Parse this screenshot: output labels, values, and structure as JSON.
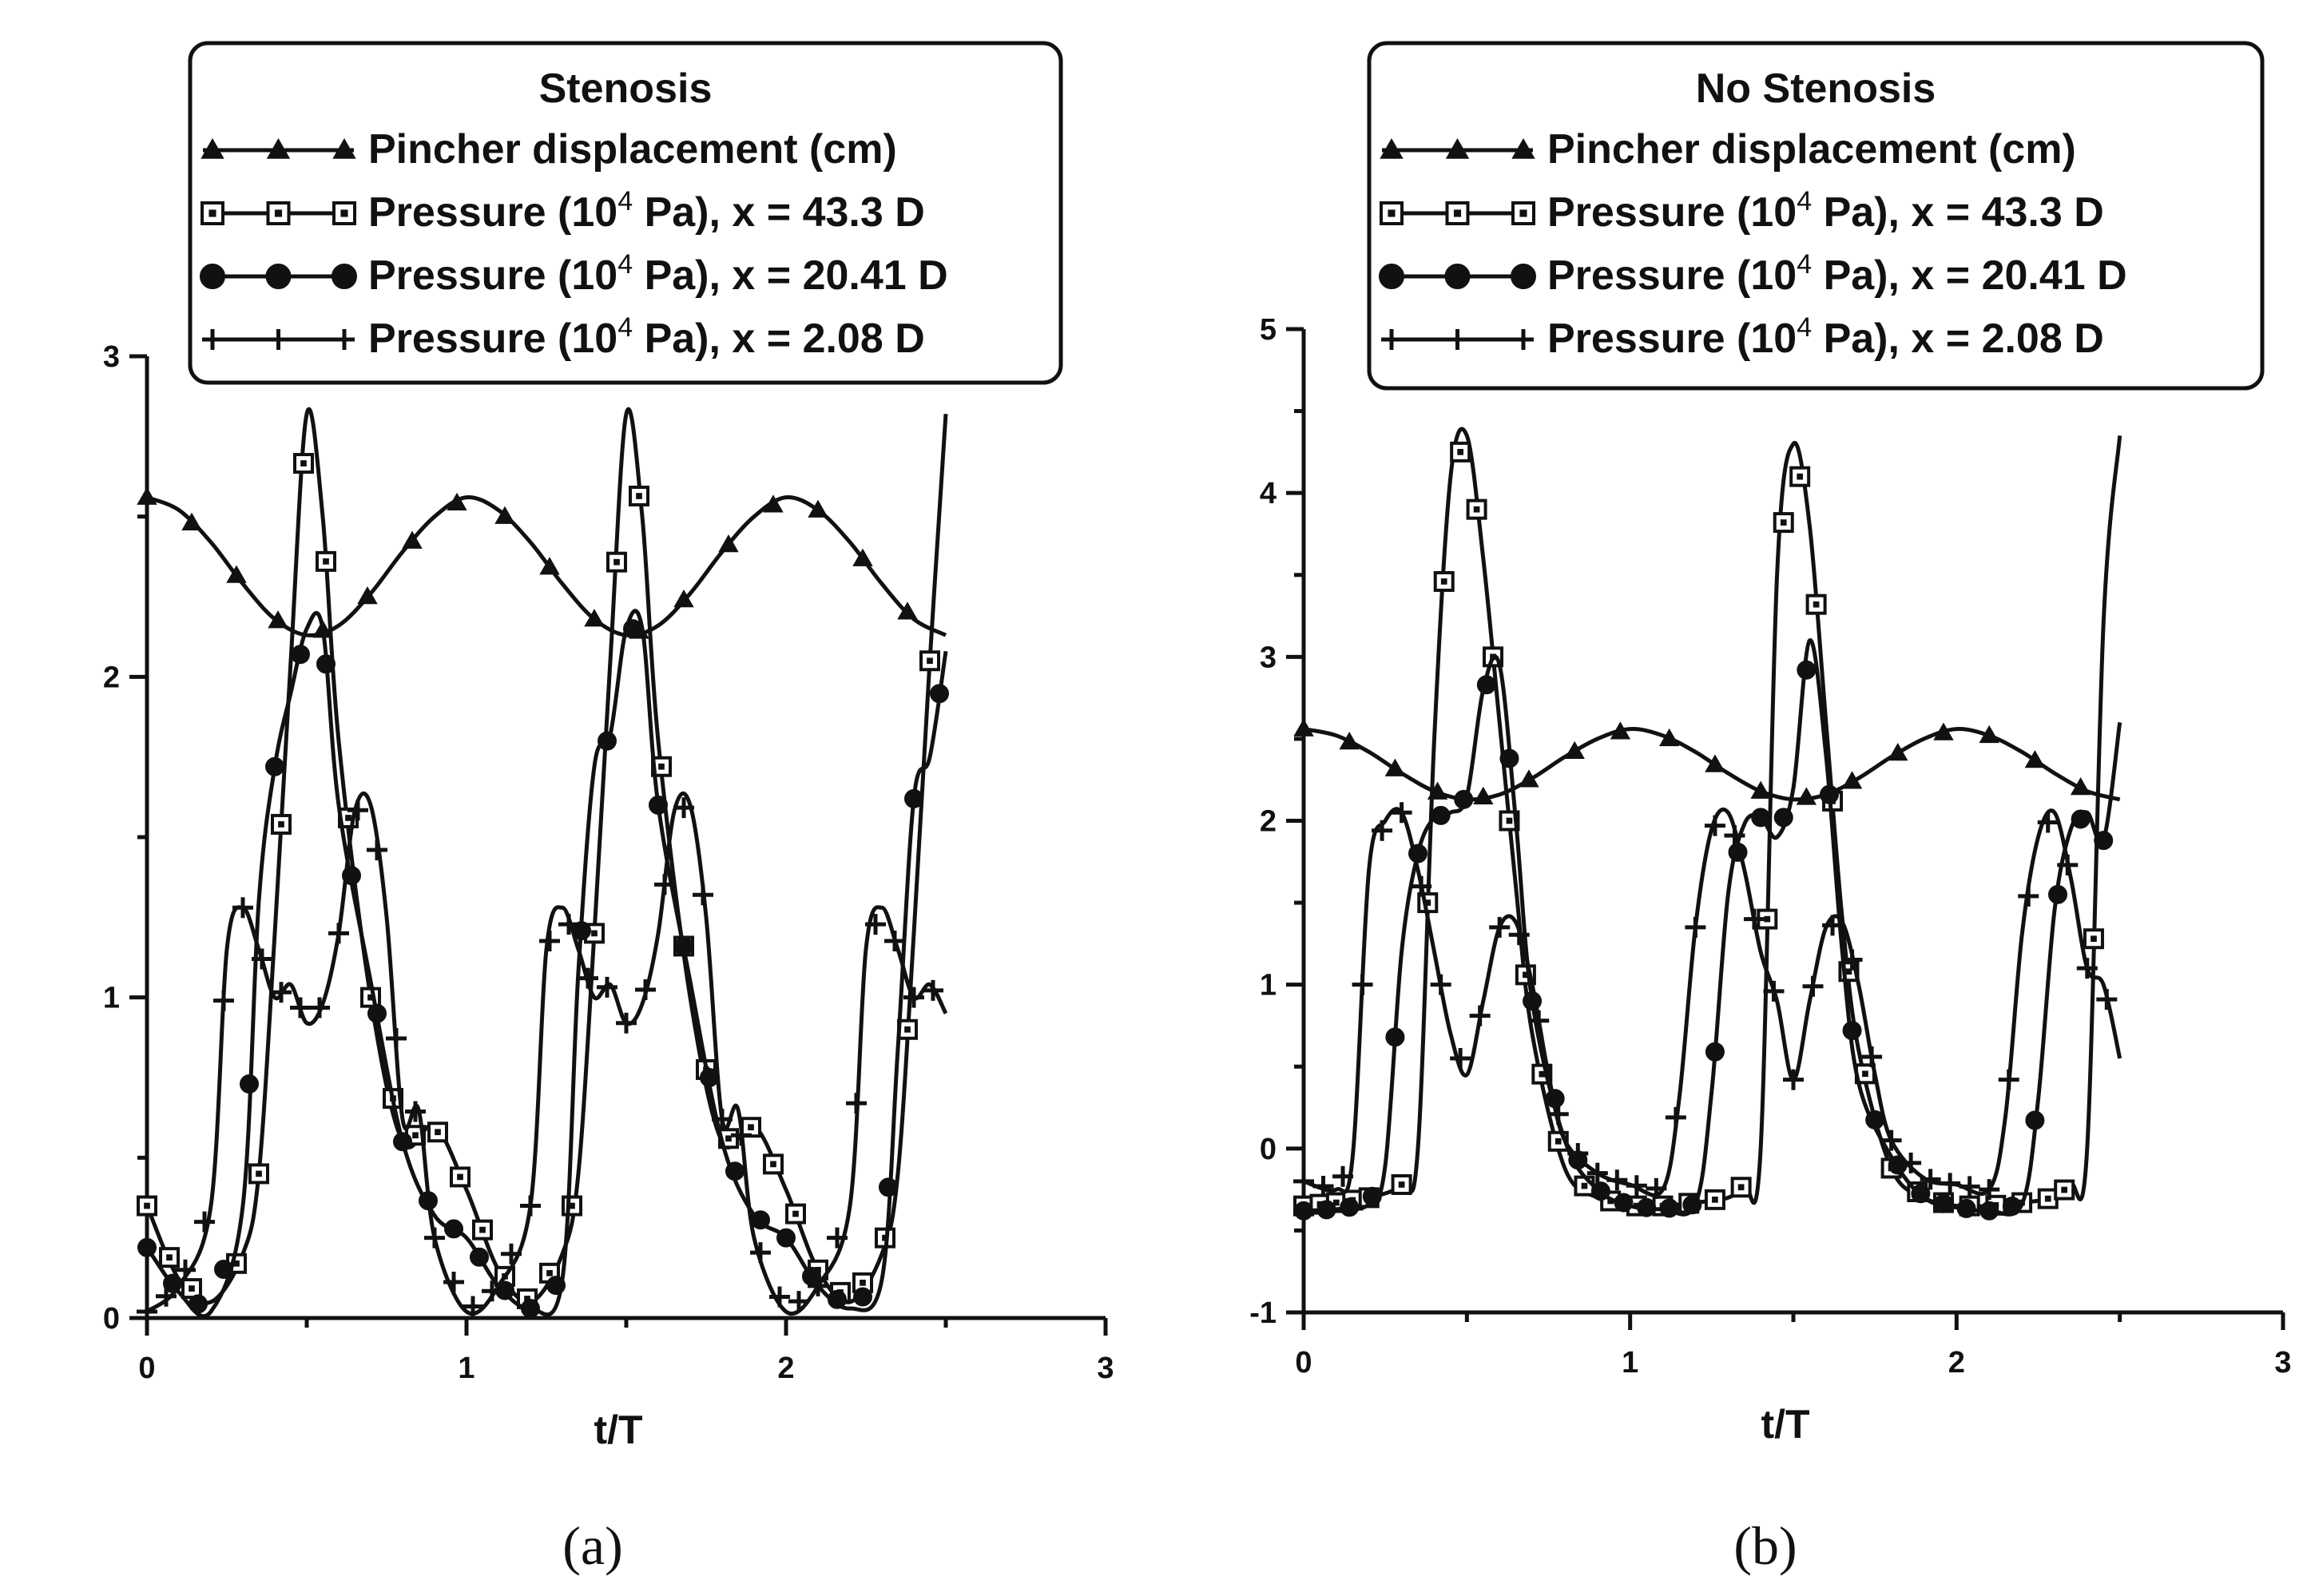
{
  "chart_data": [
    {
      "type": "line",
      "panel_label": "(a)",
      "legend_title": "Stenosis",
      "xlabel": "t/T",
      "ylabel": "",
      "xlim": [
        0,
        3
      ],
      "ylim": [
        0,
        3
      ],
      "xticks": [
        "0",
        "1",
        "2",
        "3"
      ],
      "yticks": [
        "0",
        "1",
        "2",
        "3"
      ],
      "series": [
        {
          "name": "Pincher displacement (cm)",
          "label_main": "Pincher displacement (cm)",
          "label_sup": "",
          "label_rest": "",
          "marker": "triangle",
          "x": [
            0,
            0.1,
            0.2,
            0.3,
            0.4,
            0.5,
            0.6,
            0.7,
            0.8,
            0.9,
            1.0,
            1.1,
            1.2,
            1.3,
            1.4,
            1.5,
            1.6,
            1.7,
            1.8,
            1.9,
            2.0,
            2.1,
            2.2,
            2.3,
            2.4,
            2.5
          ],
          "values": [
            2.56,
            2.52,
            2.42,
            2.29,
            2.18,
            2.13,
            2.16,
            2.26,
            2.39,
            2.5,
            2.56,
            2.52,
            2.42,
            2.29,
            2.18,
            2.13,
            2.16,
            2.26,
            2.39,
            2.5,
            2.56,
            2.52,
            2.42,
            2.29,
            2.18,
            2.13
          ],
          "marker_x": [
            0.0,
            0.14,
            0.28,
            0.41,
            0.55,
            0.69,
            0.83,
            0.97,
            1.12,
            1.26,
            1.4,
            1.54,
            1.68,
            1.82,
            1.96,
            2.1,
            2.24,
            2.38
          ]
        },
        {
          "name": "Pressure (10^4 Pa), x = 43.3 D",
          "label_main": "Pressure (10",
          "label_sup": "4",
          "label_rest": " Pa), x = 43.3 D",
          "marker": "square",
          "x": [
            0,
            0.1,
            0.2,
            0.3,
            0.35,
            0.4,
            0.45,
            0.5,
            0.55,
            0.6,
            0.7,
            0.8,
            0.9,
            1.0,
            1.1,
            1.2,
            1.3,
            1.35,
            1.4,
            1.45,
            1.5,
            1.55,
            1.6,
            1.7,
            1.8,
            1.9,
            2.0,
            2.1,
            2.2,
            2.3,
            2.35,
            2.4,
            2.45,
            2.5
          ],
          "values": [
            0.35,
            0.12,
            0.05,
            0.2,
            0.45,
            1.2,
            2.05,
            2.82,
            2.5,
            1.8,
            1.0,
            0.55,
            0.6,
            0.4,
            0.15,
            0.05,
            0.2,
            0.45,
            1.2,
            2.05,
            2.82,
            2.5,
            1.8,
            1.0,
            0.55,
            0.6,
            0.4,
            0.15,
            0.05,
            0.2,
            0.45,
            1.2,
            2.05,
            2.82
          ],
          "marker_x": [
            0.0,
            0.07,
            0.14,
            0.28,
            0.35,
            0.42,
            0.49,
            0.56,
            0.63,
            0.7,
            0.77,
            0.84,
            0.91,
            0.98,
            1.05,
            1.12,
            1.19,
            1.26,
            1.33,
            1.4,
            1.47,
            1.54,
            1.61,
            1.68,
            1.75,
            1.82,
            1.89,
            1.96,
            2.03,
            2.1,
            2.17,
            2.24,
            2.31,
            2.38,
            2.45
          ]
        },
        {
          "name": "Pressure (10^4 Pa), x = 20.41 D",
          "label_main": "Pressure (10",
          "label_sup": "4",
          "label_rest": " Pa), x = 20.41 D",
          "marker": "circle",
          "x": [
            0,
            0.1,
            0.2,
            0.3,
            0.35,
            0.4,
            0.45,
            0.5,
            0.55,
            0.6,
            0.7,
            0.8,
            0.9,
            1.0,
            1.1,
            1.2,
            1.3,
            1.35,
            1.4,
            1.45,
            1.5,
            1.55,
            1.6,
            1.7,
            1.8,
            1.9,
            2.0,
            2.1,
            2.2,
            2.3,
            2.35,
            2.4,
            2.45,
            2.5
          ],
          "values": [
            0.22,
            0.08,
            0.02,
            0.35,
            1.3,
            1.72,
            1.95,
            2.15,
            2.15,
            1.6,
            1.05,
            0.55,
            0.32,
            0.25,
            0.1,
            0.03,
            0.12,
            1.08,
            1.72,
            1.82,
            2.15,
            2.15,
            1.6,
            1.05,
            0.55,
            0.32,
            0.25,
            0.1,
            0.03,
            0.12,
            0.84,
            1.62,
            1.75,
            2.08
          ],
          "marker_x": [
            0.0,
            0.08,
            0.16,
            0.24,
            0.32,
            0.4,
            0.48,
            0.56,
            0.64,
            0.72,
            0.8,
            0.88,
            0.96,
            1.04,
            1.12,
            1.2,
            1.28,
            1.36,
            1.44,
            1.52,
            1.6,
            1.68,
            1.76,
            1.84,
            1.92,
            2.0,
            2.08,
            2.16,
            2.24,
            2.32,
            2.4,
            2.48
          ]
        },
        {
          "name": "Pressure (10^4 Pa), x = 2.08 D",
          "label_main": "Pressure (10",
          "label_sup": "4",
          "label_rest": " Pa), x = 2.08 D",
          "marker": "plus",
          "x": [
            0,
            0.1,
            0.2,
            0.25,
            0.3,
            0.35,
            0.4,
            0.45,
            0.5,
            0.55,
            0.6,
            0.65,
            0.7,
            0.75,
            0.8,
            0.85,
            0.9,
            1.0,
            1.1,
            1.2,
            1.25,
            1.3,
            1.35,
            1.4,
            1.45,
            1.5,
            1.55,
            1.6,
            1.65,
            1.7,
            1.75,
            1.8,
            1.85,
            1.9,
            2.0,
            2.1,
            2.2,
            2.25,
            2.3,
            2.35,
            2.4,
            2.45,
            2.5
          ],
          "values": [
            0.02,
            0.1,
            0.35,
            1.15,
            1.28,
            1.15,
            1.0,
            1.04,
            0.92,
            0.98,
            1.2,
            1.58,
            1.6,
            1.25,
            0.62,
            0.65,
            0.25,
            0.02,
            0.1,
            0.35,
            1.15,
            1.28,
            1.15,
            1.0,
            1.04,
            0.92,
            0.98,
            1.2,
            1.58,
            1.6,
            1.25,
            0.62,
            0.65,
            0.25,
            0.02,
            0.1,
            0.35,
            1.15,
            1.28,
            1.15,
            1.0,
            1.04,
            0.95
          ],
          "marker_x": [
            0.0,
            0.06,
            0.12,
            0.18,
            0.24,
            0.3,
            0.36,
            0.42,
            0.48,
            0.54,
            0.6,
            0.66,
            0.72,
            0.78,
            0.84,
            0.9,
            0.96,
            1.02,
            1.08,
            1.14,
            1.2,
            1.26,
            1.32,
            1.38,
            1.44,
            1.5,
            1.56,
            1.62,
            1.68,
            1.74,
            1.8,
            1.86,
            1.92,
            1.98,
            2.04,
            2.1,
            2.16,
            2.22,
            2.28,
            2.34,
            2.4,
            2.46
          ]
        }
      ]
    },
    {
      "type": "line",
      "panel_label": "(b)",
      "legend_title": "No Stenosis",
      "xlabel": "t/T",
      "ylabel": "",
      "xlim": [
        0,
        3
      ],
      "ylim": [
        -1,
        5
      ],
      "xticks": [
        "0",
        "1",
        "2",
        "3"
      ],
      "yticks": [
        "-1",
        "0",
        "1",
        "2",
        "3",
        "4",
        "5"
      ],
      "series": [
        {
          "name": "Pincher displacement (cm)",
          "label_main": "Pincher displacement (cm)",
          "label_sup": "",
          "label_rest": "",
          "marker": "triangle",
          "x": [
            0,
            0.1,
            0.2,
            0.3,
            0.4,
            0.5,
            0.6,
            0.7,
            0.8,
            0.9,
            1.0,
            1.1,
            1.2,
            1.3,
            1.4,
            1.5,
            1.6,
            1.7,
            1.8,
            1.9,
            2.0,
            2.1,
            2.2,
            2.3,
            2.4,
            2.5
          ],
          "values": [
            2.56,
            2.52,
            2.42,
            2.29,
            2.18,
            2.13,
            2.16,
            2.26,
            2.39,
            2.5,
            2.56,
            2.52,
            2.42,
            2.29,
            2.18,
            2.13,
            2.16,
            2.26,
            2.39,
            2.5,
            2.56,
            2.52,
            2.42,
            2.29,
            2.18,
            2.13
          ],
          "marker_x": [
            0.0,
            0.14,
            0.28,
            0.41,
            0.55,
            0.69,
            0.83,
            0.97,
            1.12,
            1.26,
            1.4,
            1.54,
            1.68,
            1.82,
            1.96,
            2.1,
            2.24,
            2.38
          ]
        },
        {
          "name": "Pressure (10^4 Pa), x = 43.3 D",
          "label_main": "Pressure (10",
          "label_sup": "4",
          "label_rest": " Pa), x = 43.3 D",
          "marker": "square",
          "x": [
            0,
            0.1,
            0.2,
            0.3,
            0.35,
            0.4,
            0.45,
            0.5,
            0.55,
            0.6,
            0.65,
            0.7,
            0.8,
            0.9,
            1.0,
            1.1,
            1.2,
            1.3,
            1.35,
            1.4,
            1.45,
            1.5,
            1.55,
            1.6,
            1.65,
            1.7,
            1.8,
            1.9,
            2.0,
            2.1,
            2.2,
            2.3,
            2.35,
            2.4,
            2.45,
            2.5
          ],
          "values": [
            -0.35,
            -0.33,
            -0.3,
            -0.22,
            0.0,
            2.5,
            4.1,
            4.35,
            3.6,
            2.6,
            1.6,
            0.7,
            -0.12,
            -0.3,
            -0.35,
            -0.35,
            -0.33,
            -0.3,
            -0.22,
            0.0,
            3.5,
            4.3,
            3.8,
            2.6,
            1.4,
            0.6,
            -0.12,
            -0.3,
            -0.35,
            -0.35,
            -0.33,
            -0.3,
            -0.22,
            0.0,
            3.2,
            4.35
          ],
          "marker_x": [
            0.0,
            0.05,
            0.1,
            0.15,
            0.2,
            0.3,
            0.38,
            0.43,
            0.48,
            0.53,
            0.58,
            0.63,
            0.68,
            0.73,
            0.78,
            0.86,
            0.94,
            1.02,
            1.1,
            1.18,
            1.26,
            1.34,
            1.42,
            1.47,
            1.52,
            1.57,
            1.62,
            1.67,
            1.72,
            1.8,
            1.88,
            1.96,
            2.04,
            2.12,
            2.2,
            2.28,
            2.33,
            2.42
          ]
        },
        {
          "name": "Pressure (10^4 Pa), x = 20.41 D",
          "label_main": "Pressure (10",
          "label_sup": "4",
          "label_rest": " Pa), x = 20.41 D",
          "marker": "circle",
          "x": [
            0,
            0.1,
            0.2,
            0.25,
            0.3,
            0.35,
            0.4,
            0.45,
            0.5,
            0.55,
            0.6,
            0.65,
            0.7,
            0.8,
            0.9,
            1.0,
            1.1,
            1.2,
            1.25,
            1.3,
            1.35,
            1.4,
            1.45,
            1.5,
            1.55,
            1.6,
            1.65,
            1.7,
            1.8,
            1.9,
            2.0,
            2.1,
            2.2,
            2.25,
            2.3,
            2.35,
            2.4,
            2.45,
            2.5
          ],
          "values": [
            -0.38,
            -0.37,
            -0.34,
            -0.1,
            1.2,
            1.8,
            2.02,
            2.05,
            2.15,
            2.8,
            2.95,
            2.0,
            0.9,
            0.05,
            -0.25,
            -0.35,
            -0.37,
            -0.34,
            0.35,
            1.55,
            1.98,
            2.02,
            1.9,
            2.2,
            3.1,
            2.4,
            1.2,
            0.4,
            -0.05,
            -0.3,
            -0.36,
            -0.38,
            -0.34,
            0.3,
            1.45,
            1.95,
            2.05,
            1.88,
            2.6
          ],
          "marker_x": [
            0.0,
            0.07,
            0.14,
            0.21,
            0.28,
            0.35,
            0.42,
            0.49,
            0.56,
            0.63,
            0.7,
            0.77,
            0.84,
            0.91,
            0.98,
            1.05,
            1.12,
            1.19,
            1.26,
            1.33,
            1.4,
            1.47,
            1.54,
            1.61,
            1.68,
            1.75,
            1.82,
            1.89,
            1.96,
            2.03,
            2.1,
            2.17,
            2.24,
            2.31,
            2.38,
            2.45
          ]
        },
        {
          "name": "Pressure (10^4 Pa), x = 2.08 D",
          "label_main": "Pressure (10",
          "label_sup": "4",
          "label_rest": " Pa), x = 2.08 D",
          "marker": "plus",
          "x": [
            0,
            0.1,
            0.15,
            0.2,
            0.25,
            0.3,
            0.35,
            0.4,
            0.45,
            0.5,
            0.55,
            0.6,
            0.65,
            0.7,
            0.75,
            0.8,
            0.9,
            1.0,
            1.1,
            1.15,
            1.2,
            1.25,
            1.3,
            1.35,
            1.4,
            1.45,
            1.5,
            1.55,
            1.6,
            1.65,
            1.7,
            1.75,
            1.8,
            1.9,
            2.0,
            2.1,
            2.15,
            2.2,
            2.25,
            2.3,
            2.35,
            2.4,
            2.45,
            2.5
          ],
          "values": [
            -0.2,
            -0.25,
            -0.05,
            1.7,
            2.0,
            2.05,
            1.7,
            1.2,
            0.7,
            0.45,
            0.9,
            1.35,
            1.38,
            1.0,
            0.45,
            0.05,
            -0.15,
            -0.22,
            -0.25,
            0.3,
            1.35,
            1.95,
            2.05,
            1.7,
            1.2,
            0.9,
            0.42,
            0.9,
            1.35,
            1.38,
            1.0,
            0.45,
            0.05,
            -0.18,
            -0.22,
            -0.25,
            0.2,
            1.3,
            1.9,
            2.05,
            1.65,
            1.1,
            1.0,
            0.55
          ],
          "marker_x": [
            0.0,
            0.06,
            0.12,
            0.18,
            0.24,
            0.3,
            0.36,
            0.42,
            0.48,
            0.54,
            0.6,
            0.66,
            0.72,
            0.78,
            0.84,
            0.9,
            0.96,
            1.02,
            1.08,
            1.14,
            1.2,
            1.26,
            1.32,
            1.38,
            1.44,
            1.5,
            1.56,
            1.62,
            1.68,
            1.74,
            1.8,
            1.86,
            1.92,
            1.98,
            2.04,
            2.1,
            2.16,
            2.22,
            2.28,
            2.34,
            2.4,
            2.46
          ]
        }
      ]
    }
  ]
}
